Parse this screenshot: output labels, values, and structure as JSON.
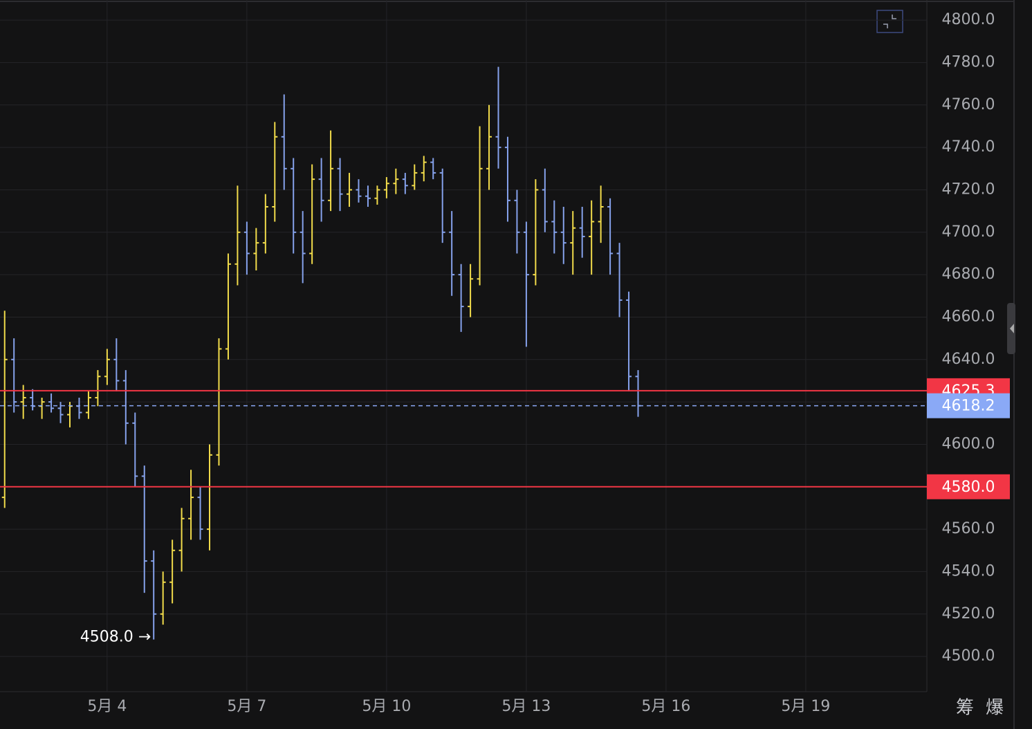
{
  "chart_data": {
    "type": "ohlc",
    "x": [
      1.8,
      2.0,
      2.2,
      2.4,
      2.6,
      2.8,
      3.0,
      3.2,
      3.4,
      3.6,
      3.8,
      4.0,
      4.2,
      4.4,
      4.6,
      4.8,
      5.0,
      5.2,
      5.4,
      5.6,
      5.8,
      6.0,
      6.2,
      6.4,
      6.6,
      6.8,
      7.0,
      7.2,
      7.4,
      7.6,
      7.8,
      8.0,
      8.2,
      8.4,
      8.6,
      8.8,
      9.0,
      9.2,
      9.4,
      9.6,
      9.8,
      10.0,
      10.2,
      10.4,
      10.6,
      10.8,
      11.0,
      11.2,
      11.4,
      11.6,
      11.8,
      12.0,
      12.2,
      12.4,
      12.6,
      12.8,
      13.0,
      13.2,
      13.4,
      13.6,
      13.8,
      14.0,
      14.2,
      14.4,
      14.6,
      14.8,
      15.0,
      15.2,
      15.4
    ],
    "open": [
      4575,
      4640,
      4620,
      4622,
      4618,
      4620,
      4617,
      4614,
      4618,
      4615,
      4622,
      4632,
      4640,
      4630,
      4610,
      4585,
      4545,
      4520,
      4535,
      4550,
      4565,
      4575,
      4560,
      4595,
      4645,
      4685,
      4700,
      4690,
      4695,
      4712,
      4745,
      4730,
      4700,
      4690,
      4725,
      4715,
      4730,
      4718,
      4720,
      4717,
      4716,
      4720,
      4723,
      4725,
      4722,
      4728,
      4733,
      4728,
      4700,
      4680,
      4665,
      4678,
      4730,
      4745,
      4740,
      4715,
      4700,
      4680,
      4720,
      4705,
      4700,
      4695,
      4702,
      4698,
      4705,
      4712,
      4690,
      4668,
      4632
    ],
    "high": [
      4663,
      4650,
      4628,
      4626,
      4622,
      4624,
      4620,
      4620,
      4622,
      4625,
      4635,
      4645,
      4650,
      4635,
      4615,
      4590,
      4550,
      4540,
      4555,
      4570,
      4588,
      4580,
      4600,
      4650,
      4690,
      4722,
      4705,
      4702,
      4718,
      4752,
      4765,
      4735,
      4710,
      4732,
      4735,
      4748,
      4735,
      4728,
      4725,
      4722,
      4722,
      4726,
      4730,
      4728,
      4732,
      4736,
      4735,
      4730,
      4710,
      4685,
      4685,
      4750,
      4760,
      4778,
      4745,
      4720,
      4705,
      4725,
      4730,
      4715,
      4712,
      4710,
      4712,
      4715,
      4722,
      4716,
      4695,
      4672,
      4635
    ],
    "low": [
      4570,
      4615,
      4612,
      4616,
      4612,
      4615,
      4610,
      4608,
      4612,
      4612,
      4618,
      4628,
      4625,
      4600,
      4580,
      4530,
      4508,
      4515,
      4525,
      4540,
      4555,
      4555,
      4550,
      4590,
      4640,
      4675,
      4680,
      4682,
      4690,
      4705,
      4720,
      4690,
      4676,
      4685,
      4705,
      4710,
      4710,
      4712,
      4714,
      4712,
      4713,
      4716,
      4718,
      4718,
      4720,
      4724,
      4725,
      4695,
      4670,
      4653,
      4660,
      4675,
      4720,
      4730,
      4705,
      4690,
      4646,
      4675,
      4700,
      4690,
      4685,
      4680,
      4688,
      4680,
      4695,
      4680,
      4660,
      4625,
      4613
    ],
    "close": [
      4640,
      4620,
      4622,
      4618,
      4620,
      4617,
      4614,
      4618,
      4615,
      4622,
      4632,
      4640,
      4630,
      4610,
      4585,
      4545,
      4520,
      4535,
      4550,
      4565,
      4575,
      4560,
      4595,
      4645,
      4685,
      4700,
      4690,
      4695,
      4712,
      4745,
      4730,
      4700,
      4690,
      4725,
      4715,
      4730,
      4718,
      4720,
      4717,
      4716,
      4720,
      4723,
      4725,
      4722,
      4728,
      4733,
      4728,
      4700,
      4680,
      4665,
      4678,
      4730,
      4745,
      4740,
      4715,
      4700,
      4680,
      4720,
      4705,
      4700,
      4695,
      4702,
      4698,
      4705,
      4712,
      4690,
      4668,
      4632,
      4618.2
    ],
    "up_color": "#f2dc4b",
    "down_color": "#86a2ec",
    "xlim": [
      1.7,
      21.6
    ],
    "ylim": [
      4483.4,
      4809.5
    ],
    "xticks": [
      {
        "value": 4,
        "label": "5月 4"
      },
      {
        "value": 7,
        "label": "5月 7"
      },
      {
        "value": 10,
        "label": "5月 10"
      },
      {
        "value": 13,
        "label": "5月 13"
      },
      {
        "value": 16,
        "label": "5月 16"
      },
      {
        "value": 19,
        "label": "5月 19"
      }
    ],
    "yticks": [
      {
        "value": 4500,
        "label": "4500.0"
      },
      {
        "value": 4520,
        "label": "4520.0"
      },
      {
        "value": 4540,
        "label": "4540.0"
      },
      {
        "value": 4560,
        "label": "4560.0"
      },
      {
        "value": 4580,
        "label": "4580.0"
      },
      {
        "value": 4600,
        "label": "4600.0"
      },
      {
        "value": 4620,
        "label": "4620.0"
      },
      {
        "value": 4640,
        "label": "4640.0"
      },
      {
        "value": 4660,
        "label": "4660.0"
      },
      {
        "value": 4680,
        "label": "4680.0"
      },
      {
        "value": 4700,
        "label": "4700.0"
      },
      {
        "value": 4720,
        "label": "4720.0"
      },
      {
        "value": 4740,
        "label": "4740.0"
      },
      {
        "value": 4760,
        "label": "4760.0"
      },
      {
        "value": 4780,
        "label": "4780.0"
      },
      {
        "value": 4800,
        "label": "4800.0"
      }
    ],
    "grid": true,
    "lines": [
      {
        "value": 4625.3,
        "label": "4625.3",
        "color": "#f23645",
        "style": "solid"
      },
      {
        "value": 4580.0,
        "label": "4580.0",
        "color": "#f23645",
        "style": "solid"
      },
      {
        "value": 4618.2,
        "label": "4618.2",
        "color": "#8aa9f6",
        "style": "dashed"
      }
    ],
    "annotation": {
      "x": 5.0,
      "value": 4508,
      "label": "4508.0 →"
    }
  },
  "toolbar": {
    "labels": [
      "筹",
      "爆"
    ]
  }
}
